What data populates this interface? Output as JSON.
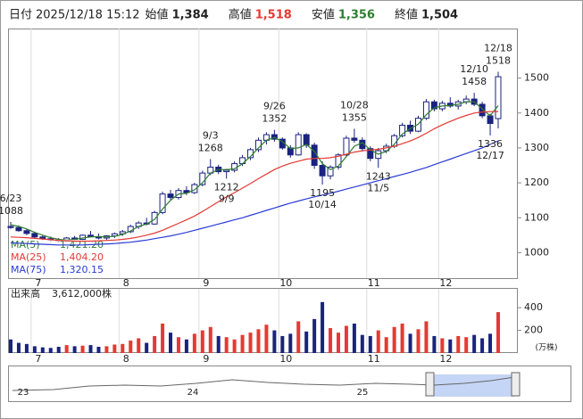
{
  "header": {
    "fields": [
      {
        "name": "日付",
        "value": "2025/12/18 15:12"
      },
      {
        "name": "始値",
        "value": "1,384"
      },
      {
        "name": "高値",
        "value": "1,518"
      },
      {
        "name": "安値",
        "value": "1,356"
      },
      {
        "name": "終値",
        "value": "1,504"
      }
    ]
  },
  "chart_data": {
    "type": "candlestick",
    "categories": [
      null,
      null,
      null,
      "7",
      null,
      null,
      null,
      null,
      null,
      null,
      null,
      null,
      null,
      null,
      "8",
      null,
      null,
      null,
      null,
      null,
      null,
      null,
      null,
      null,
      "9",
      null,
      null,
      null,
      null,
      null,
      null,
      null,
      null,
      null,
      "10",
      null,
      null,
      null,
      null,
      null,
      null,
      null,
      null,
      null,
      null,
      "11",
      null,
      null,
      null,
      null,
      null,
      null,
      null,
      null,
      "12",
      null,
      null,
      null,
      null,
      null,
      null,
      null
    ],
    "ohlc": [
      [
        1075,
        1088,
        1068,
        1072
      ],
      [
        1072,
        1078,
        1060,
        1063
      ],
      [
        1063,
        1068,
        1050,
        1055
      ],
      [
        1055,
        1060,
        1042,
        1045
      ],
      [
        1045,
        1050,
        1035,
        1040
      ],
      [
        1040,
        1046,
        1030,
        1036
      ],
      [
        1036,
        1042,
        1028,
        1033
      ],
      [
        1033,
        1045,
        1030,
        1042
      ],
      [
        1042,
        1048,
        1035,
        1038
      ],
      [
        1038,
        1052,
        1036,
        1050
      ],
      [
        1050,
        1062,
        1044,
        1046
      ],
      [
        1046,
        1055,
        1038,
        1042
      ],
      [
        1042,
        1050,
        1036,
        1048
      ],
      [
        1048,
        1058,
        1042,
        1054
      ],
      [
        1054,
        1065,
        1048,
        1060
      ],
      [
        1060,
        1080,
        1056,
        1075
      ],
      [
        1075,
        1090,
        1068,
        1085
      ],
      [
        1085,
        1100,
        1078,
        1082
      ],
      [
        1082,
        1120,
        1080,
        1115
      ],
      [
        1115,
        1175,
        1110,
        1168
      ],
      [
        1168,
        1180,
        1150,
        1158
      ],
      [
        1158,
        1185,
        1152,
        1178
      ],
      [
        1178,
        1190,
        1165,
        1172
      ],
      [
        1172,
        1200,
        1168,
        1195
      ],
      [
        1195,
        1235,
        1190,
        1228
      ],
      [
        1228,
        1268,
        1222,
        1245
      ],
      [
        1245,
        1252,
        1225,
        1232
      ],
      [
        1232,
        1240,
        1212,
        1236
      ],
      [
        1236,
        1262,
        1230,
        1255
      ],
      [
        1255,
        1280,
        1248,
        1272
      ],
      [
        1272,
        1300,
        1265,
        1295
      ],
      [
        1295,
        1330,
        1288,
        1322
      ],
      [
        1322,
        1345,
        1310,
        1338
      ],
      [
        1338,
        1352,
        1318,
        1325
      ],
      [
        1325,
        1330,
        1295,
        1300
      ],
      [
        1300,
        1308,
        1272,
        1280
      ],
      [
        1280,
        1345,
        1278,
        1338
      ],
      [
        1338,
        1342,
        1300,
        1308
      ],
      [
        1308,
        1315,
        1240,
        1250
      ],
      [
        1250,
        1262,
        1195,
        1220
      ],
      [
        1220,
        1250,
        1210,
        1245
      ],
      [
        1245,
        1285,
        1238,
        1280
      ],
      [
        1280,
        1335,
        1275,
        1328
      ],
      [
        1328,
        1355,
        1315,
        1322
      ],
      [
        1322,
        1330,
        1290,
        1298
      ],
      [
        1298,
        1305,
        1262,
        1270
      ],
      [
        1270,
        1300,
        1243,
        1292
      ],
      [
        1292,
        1312,
        1285,
        1305
      ],
      [
        1305,
        1340,
        1300,
        1335
      ],
      [
        1335,
        1372,
        1330,
        1365
      ],
      [
        1365,
        1378,
        1340,
        1348
      ],
      [
        1348,
        1392,
        1345,
        1385
      ],
      [
        1385,
        1440,
        1380,
        1432
      ],
      [
        1432,
        1438,
        1405,
        1412
      ],
      [
        1412,
        1435,
        1405,
        1428
      ],
      [
        1428,
        1445,
        1415,
        1420
      ],
      [
        1420,
        1438,
        1410,
        1432
      ],
      [
        1432,
        1450,
        1425,
        1440
      ],
      [
        1440,
        1458,
        1420,
        1425
      ],
      [
        1425,
        1432,
        1385,
        1392
      ],
      [
        1392,
        1398,
        1336,
        1370
      ],
      [
        1384,
        1518,
        1356,
        1504
      ]
    ],
    "up_color": "#ffffff",
    "down_color": "#1a237e",
    "outline_color": "#1a237e",
    "series": [
      {
        "name": "MA(5)",
        "label": "1,421.20",
        "color": "#2e7d32",
        "values": [
          1080,
          1075,
          1068,
          1058,
          1050,
          1043,
          1038,
          1036,
          1038,
          1042,
          1045,
          1046,
          1045,
          1047,
          1052,
          1062,
          1075,
          1082,
          1095,
          1125,
          1150,
          1168,
          1170,
          1180,
          1200,
          1228,
          1238,
          1238,
          1240,
          1255,
          1275,
          1300,
          1322,
          1330,
          1318,
          1298,
          1300,
          1310,
          1290,
          1255,
          1238,
          1248,
          1275,
          1305,
          1315,
          1295,
          1282,
          1290,
          1310,
          1340,
          1355,
          1368,
          1395,
          1415,
          1420,
          1422,
          1425,
          1432,
          1432,
          1412,
          1392,
          1421.2
        ]
      },
      {
        "name": "MA(25)",
        "label": "1,404.20",
        "color": "#e53935",
        "values": [
          1045,
          1044,
          1043,
          1041,
          1039,
          1037,
          1035,
          1034,
          1033,
          1033,
          1033,
          1034,
          1035,
          1036,
          1038,
          1041,
          1045,
          1050,
          1056,
          1064,
          1074,
          1084,
          1094,
          1105,
          1118,
          1132,
          1146,
          1160,
          1172,
          1185,
          1198,
          1212,
          1225,
          1238,
          1248,
          1256,
          1262,
          1268,
          1270,
          1270,
          1272,
          1276,
          1282,
          1288,
          1292,
          1294,
          1296,
          1300,
          1305,
          1312,
          1320,
          1330,
          1342,
          1355,
          1366,
          1376,
          1385,
          1393,
          1400,
          1403,
          1404,
          1404.2
        ]
      },
      {
        "name": "MA(75)",
        "label": "1,320.15",
        "color": "#2a3bd6",
        "values": [
          1028,
          1027,
          1026,
          1025,
          1024,
          1023,
          1022,
          1022,
          1022,
          1022,
          1023,
          1024,
          1025,
          1026,
          1028,
          1030,
          1033,
          1036,
          1040,
          1044,
          1048,
          1053,
          1058,
          1064,
          1070,
          1076,
          1082,
          1088,
          1094,
          1100,
          1107,
          1114,
          1121,
          1128,
          1135,
          1142,
          1148,
          1154,
          1160,
          1165,
          1170,
          1176,
          1182,
          1188,
          1194,
          1200,
          1206,
          1212,
          1218,
          1224,
          1230,
          1237,
          1244,
          1252,
          1260,
          1268,
          1276,
          1284,
          1292,
          1300,
          1310,
          1320.15
        ]
      }
    ],
    "ylim": [
      927,
      1642
    ],
    "yticks": [
      1000,
      1100,
      1200,
      1300,
      1400,
      1500
    ],
    "high_marks": [
      {
        "date": "6/23",
        "price": 1088
      },
      {
        "date": "9/3",
        "price": 1268
      },
      {
        "date": "9/26",
        "price": 1352
      },
      {
        "date": "10/28",
        "price": 1355
      },
      {
        "date": "12/10",
        "price": 1458
      },
      {
        "date": "12/18",
        "price": 1518
      }
    ],
    "low_marks": [
      {
        "date": "9/9",
        "price": 1212
      },
      {
        "date": "10/14",
        "price": 1195
      },
      {
        "date": "11/5",
        "price": 1243
      },
      {
        "date": "12/17",
        "price": 1336
      }
    ],
    "volume": {
      "name": "出来高",
      "label": "3,612,000株",
      "unit": "(万株)",
      "ylim": [
        0,
        480
      ],
      "yticks": [
        200,
        400
      ],
      "values": [
        120,
        90,
        80,
        60,
        50,
        45,
        55,
        70,
        60,
        65,
        70,
        55,
        60,
        75,
        80,
        110,
        130,
        90,
        150,
        260,
        180,
        140,
        120,
        170,
        200,
        230,
        150,
        140,
        120,
        160,
        180,
        210,
        250,
        200,
        150,
        170,
        280,
        190,
        300,
        450,
        220,
        180,
        240,
        260,
        160,
        150,
        200,
        140,
        230,
        260,
        170,
        210,
        280,
        150,
        130,
        120,
        150,
        140,
        160,
        130,
        170,
        361.2
      ],
      "up_color": "#e53935",
      "down_color": "#1a237e"
    }
  },
  "navigator": {
    "labels": [
      "23",
      "24",
      "25"
    ]
  }
}
